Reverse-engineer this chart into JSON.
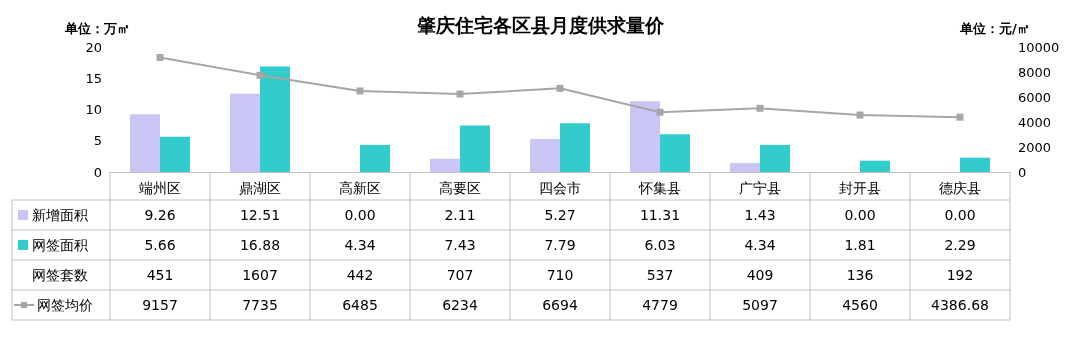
{
  "chart_data": {
    "type": "bar",
    "title": "肇庆住宅各区县月度供求量价",
    "ylabel": "单位：万㎡",
    "y2label": "单位：元/㎡",
    "categories": [
      "端州区",
      "鼎湖区",
      "高新区",
      "高要区",
      "四会市",
      "怀集县",
      "广宁县",
      "封开县",
      "德庆县"
    ],
    "series": [
      {
        "name": "新增面积",
        "color": "#c9c5f5",
        "values": [
          9.26,
          12.51,
          0.0,
          2.11,
          5.27,
          11.31,
          1.43,
          0.0,
          0.0
        ],
        "value_labels": [
          "9.26",
          "12.51",
          "0.00",
          "2.11",
          "5.27",
          "11.31",
          "1.43",
          "0.00",
          "0.00"
        ]
      },
      {
        "name": "网签面积",
        "color": "#33cccc",
        "values": [
          5.66,
          16.88,
          4.34,
          7.43,
          7.79,
          6.03,
          4.34,
          1.81,
          2.29
        ],
        "value_labels": [
          "5.66",
          "16.88",
          "4.34",
          "7.43",
          "7.79",
          "6.03",
          "4.34",
          "1.81",
          "2.29"
        ]
      },
      {
        "name": "网签套数",
        "type": "other",
        "values": [
          null,
          null,
          null,
          null,
          null,
          null,
          null,
          null,
          null
        ],
        "value_labels": [
          "451",
          "1607",
          "442",
          "707",
          "710",
          "537",
          "409",
          "136",
          "192"
        ]
      },
      {
        "name": "网签均价",
        "type": "line",
        "axis": "y2",
        "color": "#a6a6a6",
        "marker": "square",
        "values": [
          9157,
          7735,
          6485,
          6234,
          6694,
          4779,
          5097,
          4560,
          4386.68
        ],
        "value_labels": [
          "9157",
          "7735",
          "6485",
          "6234",
          "6694",
          "4779",
          "5097",
          "4560",
          "4386.68"
        ]
      }
    ],
    "ylim": [
      0,
      20
    ],
    "yticks": [
      0,
      5,
      10,
      15,
      20
    ],
    "y2lim": [
      0,
      10000
    ],
    "y2ticks": [
      0,
      2000,
      4000,
      6000,
      8000,
      10000
    ],
    "grid": false,
    "legend": "bottom left",
    "data_labels": true
  }
}
